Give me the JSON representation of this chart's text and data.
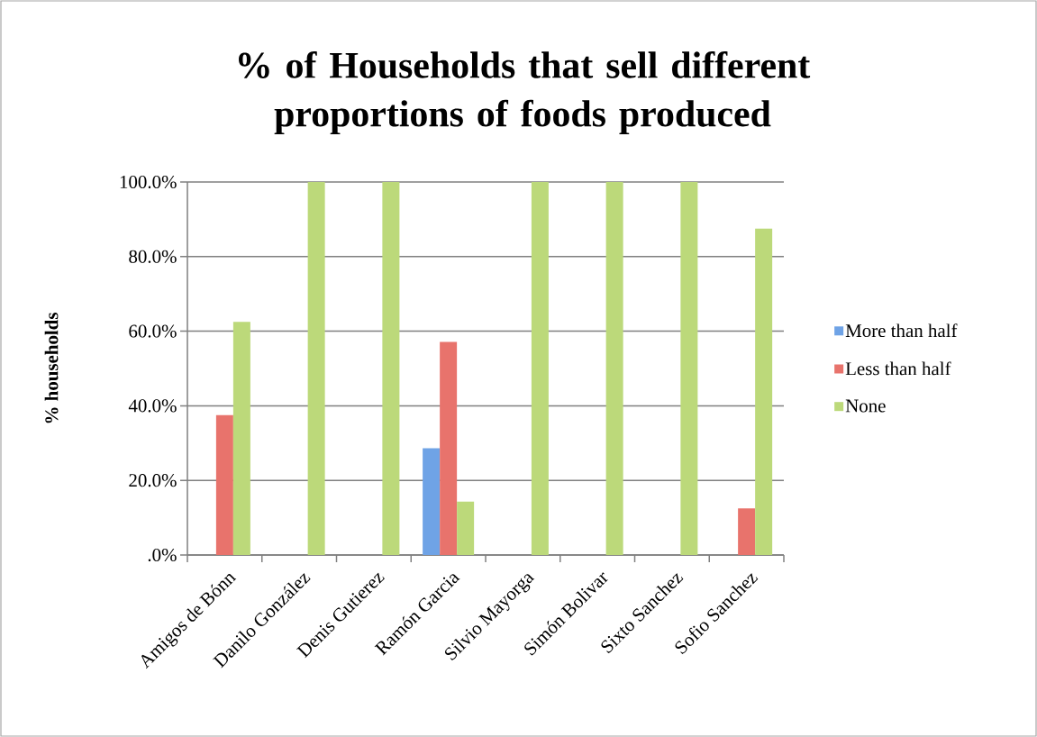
{
  "chart_data": {
    "type": "bar",
    "title": "% of Households that sell different proportions of foods produced",
    "ylabel": "% households",
    "categories": [
      "Amigos de Bónn",
      "Danilo González",
      "Denis Gutierez",
      "Ramón Garcia",
      "Silvio Mayorga",
      "Simón Bolivar",
      "Sixto Sanchez",
      "Sofio Sanchez"
    ],
    "series": [
      {
        "name": "More than half",
        "color": "#6fa3e6",
        "values": [
          0,
          0,
          0,
          28.6,
          0,
          0,
          0,
          0
        ]
      },
      {
        "name": "Less than half",
        "color": "#e8736c",
        "values": [
          37.5,
          0,
          0,
          57.1,
          0,
          0,
          0,
          12.5
        ]
      },
      {
        "name": "None",
        "color": "#bcd97a",
        "values": [
          62.5,
          100,
          100,
          14.3,
          100,
          100,
          100,
          87.5
        ]
      }
    ],
    "ylim": [
      0,
      100
    ],
    "yticks": [
      {
        "value": 0,
        "label": ".0%"
      },
      {
        "value": 20,
        "label": "20.0%"
      },
      {
        "value": 40,
        "label": "40.0%"
      },
      {
        "value": 60,
        "label": "60.0%"
      },
      {
        "value": 80,
        "label": "80.0%"
      },
      {
        "value": 100,
        "label": "100.0%"
      }
    ],
    "grid": "y",
    "legend": "right"
  }
}
